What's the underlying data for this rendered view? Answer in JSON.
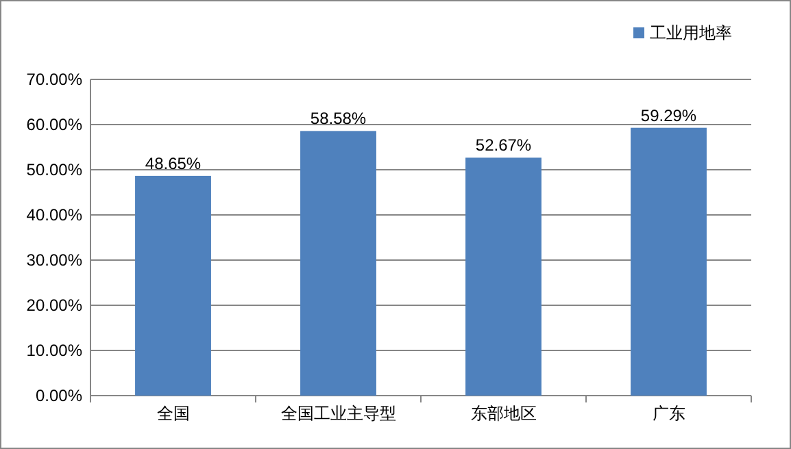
{
  "chart_data": {
    "type": "bar",
    "categories": [
      "全国",
      "全国工业主导型",
      "东部地区",
      "广东"
    ],
    "series": [
      {
        "name": "工业用地率",
        "color": "#4f81bd",
        "values": [
          48.65,
          58.58,
          52.67,
          59.29
        ],
        "value_labels": [
          "48.65%",
          "58.58%",
          "52.67%",
          "59.29%"
        ]
      }
    ],
    "ylim": [
      0,
      70
    ],
    "yticks": [
      {
        "value": 0,
        "label": "0.00%"
      },
      {
        "value": 10,
        "label": "10.00%"
      },
      {
        "value": 20,
        "label": "20.00%"
      },
      {
        "value": 30,
        "label": "30.00%"
      },
      {
        "value": 40,
        "label": "40.00%"
      },
      {
        "value": 50,
        "label": "50.00%"
      },
      {
        "value": 60,
        "label": "60.00%"
      },
      {
        "value": 70,
        "label": "70.00%"
      }
    ],
    "grid": "y",
    "legend": "top right"
  }
}
